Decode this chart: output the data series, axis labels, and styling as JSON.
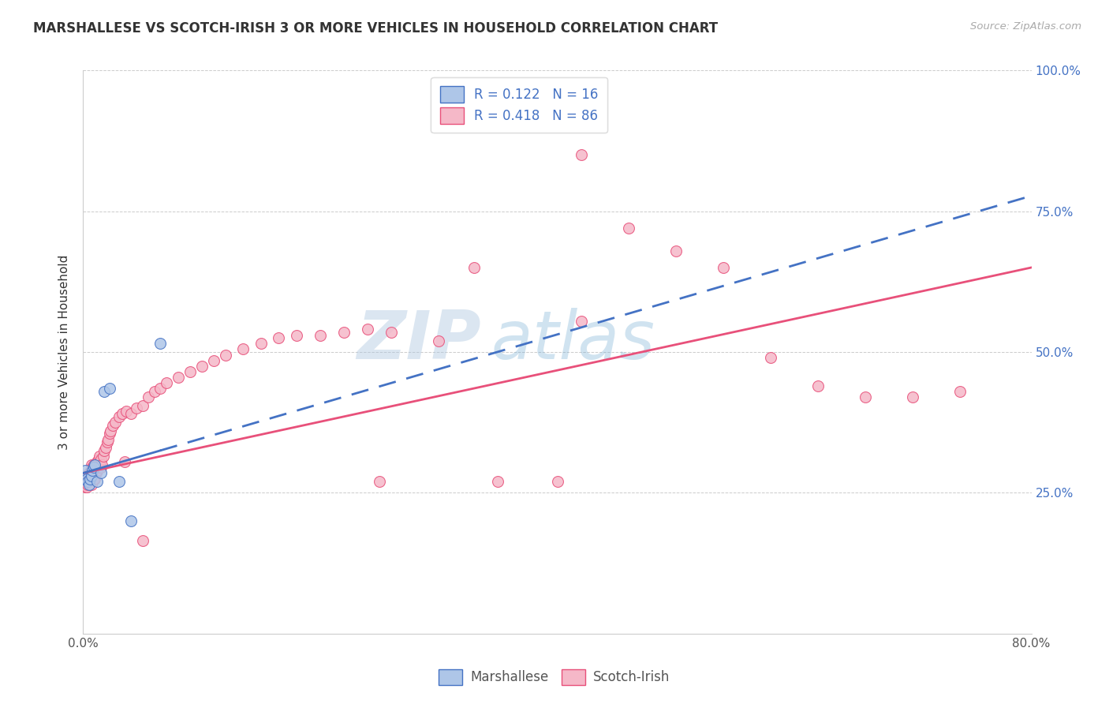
{
  "title": "MARSHALLESE VS SCOTCH-IRISH 3 OR MORE VEHICLES IN HOUSEHOLD CORRELATION CHART",
  "source": "Source: ZipAtlas.com",
  "ylabel": "3 or more Vehicles in Household",
  "x_min": 0.0,
  "x_max": 0.8,
  "y_min": 0.0,
  "y_max": 1.0,
  "blue_color": "#aec6e8",
  "pink_color": "#f5b8c8",
  "blue_line_color": "#4472c4",
  "pink_line_color": "#e8507a",
  "r_n_color": "#4472c4",
  "watermark_zip": "ZIP",
  "watermark_atlas": "atlas",
  "marshallese_x": [
    0.002,
    0.003,
    0.004,
    0.005,
    0.006,
    0.007,
    0.008,
    0.009,
    0.01,
    0.012,
    0.015,
    0.018,
    0.022,
    0.03,
    0.04,
    0.065
  ],
  "marshallese_y": [
    0.29,
    0.275,
    0.27,
    0.265,
    0.275,
    0.28,
    0.29,
    0.295,
    0.3,
    0.27,
    0.285,
    0.43,
    0.435,
    0.27,
    0.2,
    0.515
  ],
  "scotchirish_x": [
    0.002,
    0.003,
    0.004,
    0.004,
    0.005,
    0.005,
    0.006,
    0.006,
    0.007,
    0.007,
    0.007,
    0.008,
    0.008,
    0.009,
    0.009,
    0.01,
    0.01,
    0.011,
    0.011,
    0.012,
    0.012,
    0.013,
    0.013,
    0.014,
    0.014,
    0.015,
    0.015,
    0.016,
    0.017,
    0.018,
    0.019,
    0.02,
    0.021,
    0.022,
    0.023,
    0.025,
    0.027,
    0.03,
    0.033,
    0.036,
    0.04,
    0.045,
    0.05,
    0.055,
    0.06,
    0.065,
    0.07,
    0.08,
    0.09,
    0.1,
    0.11,
    0.12,
    0.135,
    0.15,
    0.165,
    0.18,
    0.2,
    0.22,
    0.24,
    0.26,
    0.3,
    0.33,
    0.38,
    0.42,
    0.46,
    0.5,
    0.54,
    0.58,
    0.62,
    0.66,
    0.7,
    0.74,
    0.002,
    0.003,
    0.004,
    0.005,
    0.006,
    0.007,
    0.008,
    0.009,
    0.42,
    0.05,
    0.035,
    0.4,
    0.35,
    0.25
  ],
  "scotchirish_y": [
    0.265,
    0.275,
    0.27,
    0.28,
    0.265,
    0.285,
    0.27,
    0.285,
    0.275,
    0.29,
    0.3,
    0.28,
    0.295,
    0.285,
    0.3,
    0.275,
    0.295,
    0.285,
    0.3,
    0.29,
    0.305,
    0.295,
    0.31,
    0.3,
    0.315,
    0.295,
    0.31,
    0.3,
    0.315,
    0.325,
    0.33,
    0.34,
    0.345,
    0.355,
    0.36,
    0.37,
    0.375,
    0.385,
    0.39,
    0.395,
    0.39,
    0.4,
    0.405,
    0.42,
    0.43,
    0.435,
    0.445,
    0.455,
    0.465,
    0.475,
    0.485,
    0.495,
    0.505,
    0.515,
    0.525,
    0.53,
    0.53,
    0.535,
    0.54,
    0.535,
    0.52,
    0.65,
    0.9,
    0.85,
    0.72,
    0.68,
    0.65,
    0.49,
    0.44,
    0.42,
    0.42,
    0.43,
    0.26,
    0.26,
    0.265,
    0.27,
    0.27,
    0.265,
    0.275,
    0.275,
    0.555,
    0.165,
    0.305,
    0.27,
    0.27,
    0.27
  ],
  "blue_trendline_x0": 0.0,
  "blue_trendline_y0": 0.285,
  "blue_trendline_x1": 0.065,
  "blue_trendline_y1": 0.325,
  "pink_trendline_x0": 0.0,
  "pink_trendline_y0": 0.285,
  "pink_trendline_x1": 0.8,
  "pink_trendline_y1": 0.65
}
